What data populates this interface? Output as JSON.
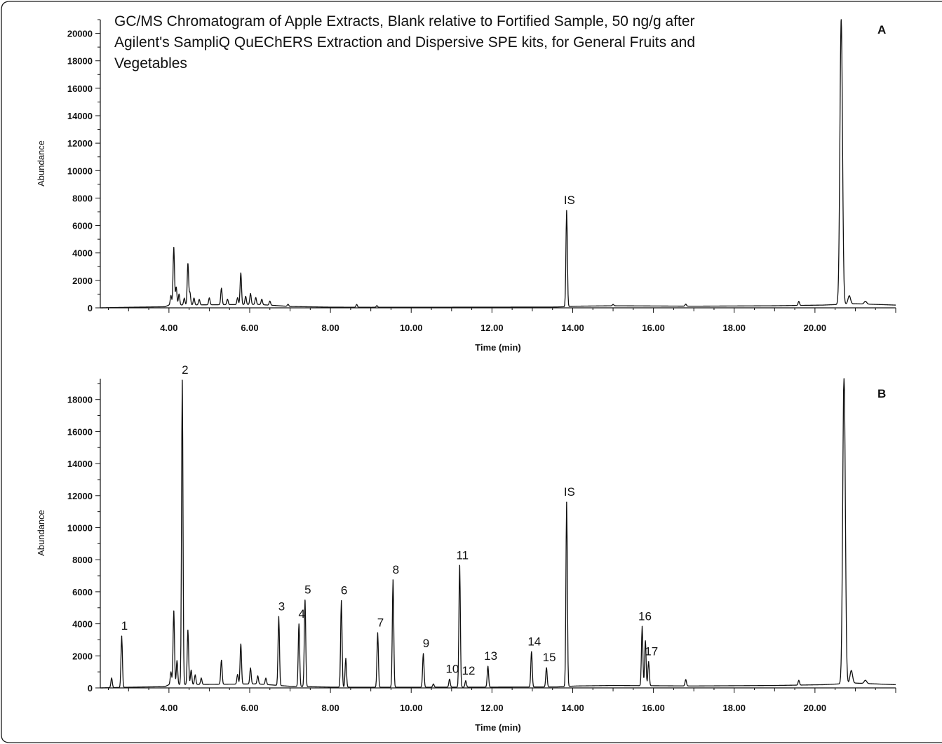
{
  "title_lines": [
    "GC/MS Chromatogram of Apple Extracts, Blank relative to Fortified Sample, 50 ng/g after",
    "Agilent's SampliQ QuEChERS Extraction and Dispersive SPE kits, for General Fruits and",
    "Vegetables"
  ],
  "chart_data": [
    {
      "type": "line",
      "panel": "A",
      "xlabel": "Time (min)",
      "ylabel": "Abundance",
      "xlim": [
        2.3,
        22.0
      ],
      "ylim": [
        0,
        21000
      ],
      "x_ticks": [
        "4.00",
        "6.00",
        "8.00",
        "10.00",
        "12.00",
        "14.00",
        "16.00",
        "18.00",
        "20.00"
      ],
      "y_ticks": [
        "0",
        "2000",
        "4000",
        "6000",
        "8000",
        "10000",
        "12000",
        "14000",
        "16000",
        "18000",
        "20000"
      ],
      "baseline": [
        [
          2.3,
          0
        ],
        [
          2.8,
          30
        ],
        [
          3.2,
          50
        ],
        [
          3.9,
          80
        ],
        [
          4.0,
          200
        ],
        [
          6.2,
          250
        ],
        [
          7.0,
          100
        ],
        [
          8.0,
          50
        ],
        [
          9.0,
          40
        ],
        [
          12.0,
          50
        ],
        [
          13.6,
          60
        ],
        [
          14.1,
          120
        ],
        [
          15.0,
          150
        ],
        [
          17.0,
          120
        ],
        [
          19.0,
          150
        ],
        [
          20.2,
          200
        ],
        [
          21.0,
          300
        ],
        [
          21.5,
          250
        ],
        [
          22.0,
          200
        ]
      ],
      "peaks": [
        {
          "t": 4.05,
          "h": 700
        },
        {
          "t": 4.12,
          "h": 4200
        },
        {
          "t": 4.18,
          "h": 1300
        },
        {
          "t": 4.25,
          "h": 800
        },
        {
          "t": 4.38,
          "h": 500
        },
        {
          "t": 4.47,
          "h": 3000
        },
        {
          "t": 4.52,
          "h": 900
        },
        {
          "t": 4.62,
          "h": 500
        },
        {
          "t": 4.75,
          "h": 400
        },
        {
          "t": 5.0,
          "h": 500
        },
        {
          "t": 5.3,
          "h": 1200
        },
        {
          "t": 5.45,
          "h": 400
        },
        {
          "t": 5.7,
          "h": 500
        },
        {
          "t": 5.78,
          "h": 2300
        },
        {
          "t": 5.9,
          "h": 600
        },
        {
          "t": 6.02,
          "h": 800
        },
        {
          "t": 6.15,
          "h": 500
        },
        {
          "t": 6.3,
          "h": 400
        },
        {
          "t": 6.5,
          "h": 300
        },
        {
          "t": 6.95,
          "h": 150
        },
        {
          "t": 8.65,
          "h": 200
        },
        {
          "t": 9.15,
          "h": 120
        },
        {
          "t": 13.85,
          "h": 7000
        },
        {
          "t": 15.0,
          "h": 100
        },
        {
          "t": 16.8,
          "h": 150
        },
        {
          "t": 19.6,
          "h": 300
        },
        {
          "t": 20.65,
          "h": 20800
        },
        {
          "t": 20.85,
          "h": 600
        },
        {
          "t": 21.25,
          "h": 200
        }
      ],
      "annotations": [
        {
          "label": "IS",
          "t": 13.85,
          "h": 7000
        }
      ]
    },
    {
      "type": "line",
      "panel": "B",
      "xlabel": "Time (min)",
      "ylabel": "Abundance",
      "xlim": [
        2.3,
        22.0
      ],
      "ylim": [
        0,
        19300
      ],
      "x_ticks": [
        "4.00",
        "6.00",
        "8.00",
        "10.00",
        "12.00",
        "14.00",
        "16.00",
        "18.00",
        "20.00"
      ],
      "y_ticks": [
        "0",
        "2000",
        "4000",
        "6000",
        "8000",
        "10000",
        "12000",
        "14000",
        "16000",
        "18000"
      ],
      "baseline": [
        [
          2.3,
          0
        ],
        [
          2.8,
          30
        ],
        [
          3.2,
          50
        ],
        [
          3.9,
          80
        ],
        [
          4.0,
          200
        ],
        [
          6.2,
          250
        ],
        [
          7.0,
          100
        ],
        [
          8.0,
          50
        ],
        [
          9.0,
          40
        ],
        [
          12.0,
          50
        ],
        [
          13.6,
          60
        ],
        [
          14.1,
          120
        ],
        [
          15.0,
          150
        ],
        [
          17.0,
          120
        ],
        [
          19.0,
          150
        ],
        [
          20.2,
          200
        ],
        [
          21.0,
          300
        ],
        [
          21.5,
          250
        ],
        [
          22.0,
          200
        ]
      ],
      "peaks": [
        {
          "t": 2.58,
          "h": 600
        },
        {
          "t": 2.83,
          "h": 3200
        },
        {
          "t": 4.05,
          "h": 800
        },
        {
          "t": 4.12,
          "h": 4600
        },
        {
          "t": 4.2,
          "h": 1500
        },
        {
          "t": 4.33,
          "h": 19000
        },
        {
          "t": 4.47,
          "h": 3400
        },
        {
          "t": 4.55,
          "h": 900
        },
        {
          "t": 4.65,
          "h": 600
        },
        {
          "t": 4.8,
          "h": 400
        },
        {
          "t": 5.3,
          "h": 1500
        },
        {
          "t": 5.7,
          "h": 600
        },
        {
          "t": 5.78,
          "h": 2500
        },
        {
          "t": 6.02,
          "h": 1000
        },
        {
          "t": 6.2,
          "h": 500
        },
        {
          "t": 6.4,
          "h": 400
        },
        {
          "t": 6.72,
          "h": 4300
        },
        {
          "t": 7.22,
          "h": 3900
        },
        {
          "t": 7.37,
          "h": 5400
        },
        {
          "t": 8.27,
          "h": 5400
        },
        {
          "t": 8.38,
          "h": 1800
        },
        {
          "t": 9.17,
          "h": 3400
        },
        {
          "t": 9.55,
          "h": 6700
        },
        {
          "t": 10.3,
          "h": 2100
        },
        {
          "t": 10.55,
          "h": 200
        },
        {
          "t": 10.95,
          "h": 500
        },
        {
          "t": 11.2,
          "h": 7600
        },
        {
          "t": 11.35,
          "h": 400
        },
        {
          "t": 11.9,
          "h": 1300
        },
        {
          "t": 12.98,
          "h": 2200
        },
        {
          "t": 13.35,
          "h": 1200
        },
        {
          "t": 13.85,
          "h": 11500
        },
        {
          "t": 15.72,
          "h": 3700
        },
        {
          "t": 15.8,
          "h": 2800
        },
        {
          "t": 15.88,
          "h": 1500
        },
        {
          "t": 16.8,
          "h": 400
        },
        {
          "t": 19.6,
          "h": 300
        },
        {
          "t": 20.72,
          "h": 19600
        },
        {
          "t": 20.9,
          "h": 800
        },
        {
          "t": 21.25,
          "h": 200
        }
      ],
      "annotations": [
        {
          "label": "1",
          "t": 2.83,
          "h": 3200
        },
        {
          "label": "2",
          "t": 4.33,
          "h": 19000
        },
        {
          "label": "3",
          "t": 6.72,
          "h": 4300
        },
        {
          "label": "4",
          "t": 7.22,
          "h": 3900
        },
        {
          "label": "5",
          "t": 7.37,
          "h": 5400
        },
        {
          "label": "6",
          "t": 8.27,
          "h": 5400
        },
        {
          "label": "7",
          "t": 9.17,
          "h": 3400
        },
        {
          "label": "8",
          "t": 9.55,
          "h": 6700
        },
        {
          "label": "9",
          "t": 10.3,
          "h": 2100
        },
        {
          "label": "10",
          "t": 10.95,
          "h": 500
        },
        {
          "label": "11",
          "t": 11.2,
          "h": 7600
        },
        {
          "label": "12",
          "t": 11.35,
          "h": 400
        },
        {
          "label": "13",
          "t": 11.9,
          "h": 1300
        },
        {
          "label": "14",
          "t": 12.98,
          "h": 2200
        },
        {
          "label": "15",
          "t": 13.35,
          "h": 1200
        },
        {
          "label": "IS",
          "t": 13.85,
          "h": 11500
        },
        {
          "label": "16",
          "t": 15.72,
          "h": 3700
        },
        {
          "label": "17",
          "t": 15.88,
          "h": 1500
        }
      ]
    }
  ]
}
